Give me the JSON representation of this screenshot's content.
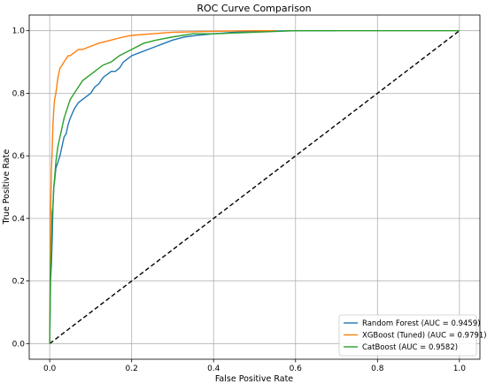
{
  "chart_data": {
    "type": "line",
    "title": "ROC Curve Comparison",
    "xlabel": "False Positive Rate",
    "ylabel": "True Positive Rate",
    "xlim": [
      -0.05,
      1.05
    ],
    "ylim": [
      -0.05,
      1.05
    ],
    "xticks": [
      "0.0",
      "0.2",
      "0.4",
      "0.6",
      "0.8",
      "1.0"
    ],
    "yticks": [
      "0.0",
      "0.2",
      "0.4",
      "0.6",
      "0.8",
      "1.0"
    ],
    "grid": true,
    "legend_position": "bottom-right",
    "series": [
      {
        "name": "Random Forest (AUC = 0.9459)",
        "color": "#1f77b4",
        "x": [
          0,
          0.002,
          0.004,
          0.006,
          0.008,
          0.01,
          0.012,
          0.015,
          0.02,
          0.025,
          0.03,
          0.035,
          0.04,
          0.045,
          0.05,
          0.06,
          0.07,
          0.08,
          0.09,
          0.1,
          0.11,
          0.12,
          0.13,
          0.14,
          0.15,
          0.16,
          0.17,
          0.18,
          0.19,
          0.2,
          0.22,
          0.24,
          0.26,
          0.28,
          0.3,
          0.33,
          0.36,
          0.4,
          0.45,
          0.5,
          0.6,
          0.7
        ],
        "y": [
          0,
          0.2,
          0.25,
          0.33,
          0.44,
          0.5,
          0.52,
          0.56,
          0.58,
          0.6,
          0.63,
          0.66,
          0.67,
          0.7,
          0.72,
          0.75,
          0.77,
          0.78,
          0.79,
          0.8,
          0.82,
          0.83,
          0.85,
          0.86,
          0.87,
          0.87,
          0.88,
          0.9,
          0.91,
          0.92,
          0.93,
          0.94,
          0.95,
          0.96,
          0.97,
          0.98,
          0.985,
          0.99,
          0.995,
          0.998,
          1.0,
          1.0
        ]
      },
      {
        "name": "XGBoost (Tuned) (AUC = 0.9791)",
        "color": "#ff7f0e",
        "x": [
          0,
          0.002,
          0.004,
          0.006,
          0.008,
          0.01,
          0.012,
          0.015,
          0.02,
          0.025,
          0.03,
          0.035,
          0.04,
          0.045,
          0.05,
          0.06,
          0.07,
          0.08,
          0.1,
          0.12,
          0.15,
          0.18,
          0.2,
          0.25,
          0.3,
          0.4,
          0.5,
          0.55
        ],
        "y": [
          0,
          0.4,
          0.55,
          0.62,
          0.7,
          0.75,
          0.78,
          0.8,
          0.85,
          0.88,
          0.89,
          0.9,
          0.91,
          0.92,
          0.92,
          0.93,
          0.94,
          0.94,
          0.95,
          0.96,
          0.97,
          0.98,
          0.985,
          0.99,
          0.995,
          0.998,
          1.0,
          1.0
        ]
      },
      {
        "name": "CatBoost (AUC = 0.9582)",
        "color": "#2ca02c",
        "x": [
          0,
          0.002,
          0.004,
          0.006,
          0.008,
          0.01,
          0.012,
          0.015,
          0.02,
          0.025,
          0.03,
          0.035,
          0.04,
          0.045,
          0.05,
          0.06,
          0.07,
          0.08,
          0.09,
          0.1,
          0.11,
          0.12,
          0.13,
          0.15,
          0.17,
          0.2,
          0.23,
          0.26,
          0.3,
          0.35,
          0.4,
          0.5,
          0.6,
          0.7,
          0.8,
          1.0
        ],
        "y": [
          0,
          0.25,
          0.3,
          0.42,
          0.44,
          0.5,
          0.53,
          0.58,
          0.63,
          0.66,
          0.69,
          0.72,
          0.74,
          0.76,
          0.78,
          0.8,
          0.82,
          0.84,
          0.85,
          0.86,
          0.87,
          0.88,
          0.89,
          0.9,
          0.92,
          0.94,
          0.96,
          0.97,
          0.98,
          0.99,
          0.99,
          0.995,
          1.0,
          1.0,
          1.0,
          1.0
        ]
      }
    ],
    "reference_line": {
      "x": [
        0,
        1
      ],
      "y": [
        0,
        1
      ],
      "color": "#000000",
      "style": "dashed"
    }
  }
}
